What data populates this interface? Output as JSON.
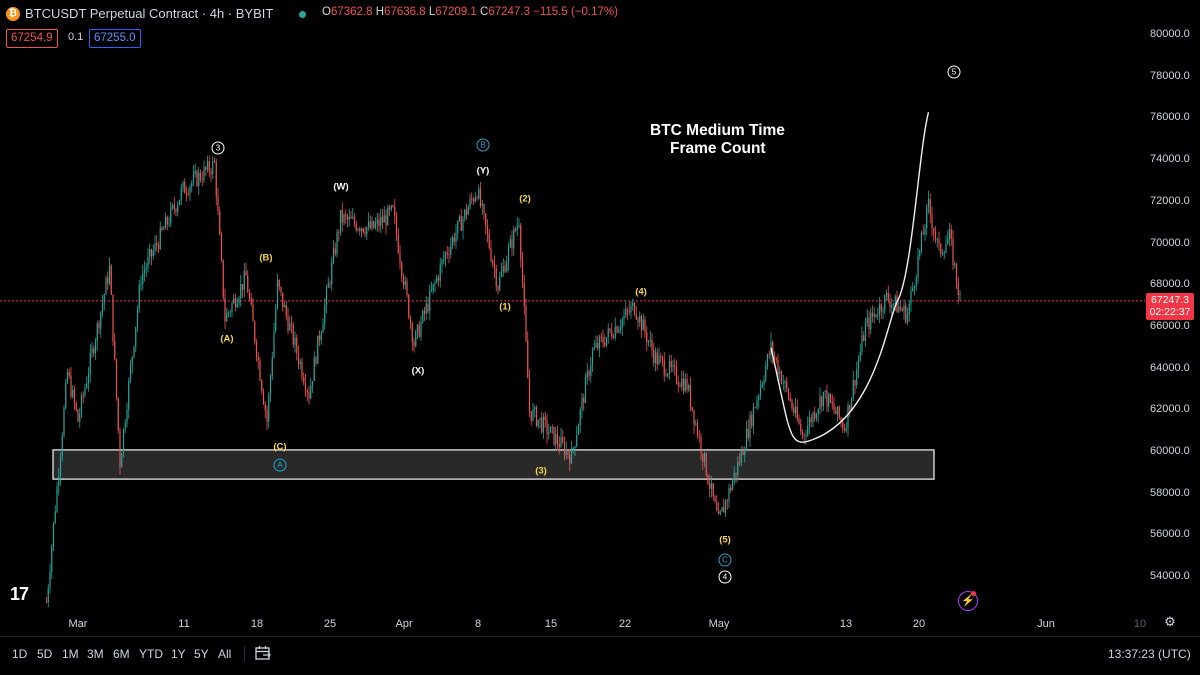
{
  "header": {
    "symbol_icon": "bitcoin-icon",
    "title": "BTCUSDT Perpetual Contract · 4h · BYBIT",
    "ohlc": {
      "o_label": "O",
      "o": "67362.8",
      "h_label": "H",
      "h": "67636.8",
      "l_label": "L",
      "l": "67209.1",
      "c_label": "C",
      "c": "67247.3",
      "change": "−115.5 (−0.17%)"
    },
    "bid": "67254.9",
    "spread": "0.1",
    "ask": "67255.0"
  },
  "colors": {
    "up": "#26a69a",
    "down": "#ef5350",
    "price_line": "#f23645",
    "wave_yellow": "#f5d742",
    "wave_cyan": "#22a6c8"
  },
  "price_axis": {
    "ticks": [
      "80000.0",
      "78000.0",
      "76000.0",
      "74000.0",
      "72000.0",
      "70000.0",
      "68000.0",
      "66000.0",
      "64000.0",
      "62000.0",
      "60000.0",
      "58000.0",
      "56000.0",
      "54000.0"
    ],
    "current_price": "67247.3",
    "countdown": "02:22:37"
  },
  "time_axis": {
    "ticks": [
      "Mar",
      "11",
      "18",
      "25",
      "Apr",
      "8",
      "15",
      "22",
      "May",
      "13",
      "20",
      "Jun",
      "10"
    ]
  },
  "annotation": {
    "line1": "BTC Medium Time",
    "line2": "Frame Count"
  },
  "wave_labels": [
    "(A)",
    "(B)",
    "(C)",
    "(W)",
    "(X)",
    "(Y)",
    "(1)",
    "(2)",
    "(3)",
    "(4)",
    "(5)"
  ],
  "wave_circles": [
    "3",
    "A",
    "B",
    "C",
    "4",
    "5"
  ],
  "bottom_bar": {
    "ranges": [
      "1D",
      "5D",
      "1M",
      "3M",
      "6M",
      "YTD",
      "1Y",
      "5Y",
      "All"
    ],
    "compare_icon": "calendar-range-icon",
    "clock": "13:37:23 (UTC)"
  },
  "logo": "17",
  "chart_data": {
    "type": "candlestick",
    "title": "BTCUSDT Perpetual Contract · 4h · BYBIT",
    "ylim": [
      52500,
      81000
    ],
    "current_price": 67247.3,
    "support_zone": [
      58700,
      60100
    ],
    "swing_path": [
      [
        "Feb 26",
        52800
      ],
      [
        "Feb 28",
        63800
      ],
      [
        "Mar 1",
        61500
      ],
      [
        "Mar 4",
        68800
      ],
      [
        "Mar 5",
        59500
      ],
      [
        "Mar 7",
        68400
      ],
      [
        "Mar 11",
        72600
      ],
      [
        "Mar 14",
        73800
      ],
      [
        "Mar 15",
        66400
      ],
      [
        "Mar 17",
        68400
      ],
      [
        "Mar 19",
        61500
      ],
      [
        "Mar 20",
        68000
      ],
      [
        "Mar 23",
        62800
      ],
      [
        "Mar 26",
        71200
      ],
      [
        "Mar 29",
        70700
      ],
      [
        "Mar 31",
        71500
      ],
      [
        "Apr 2",
        65200
      ],
      [
        "Apr 5",
        69500
      ],
      [
        "Apr 8",
        72600
      ],
      [
        "Apr 10",
        68000
      ],
      [
        "Apr 12",
        71200
      ],
      [
        "Apr 13",
        62000
      ],
      [
        "Apr 17",
        59800
      ],
      [
        "Apr 19",
        64800
      ],
      [
        "Apr 23",
        67000
      ],
      [
        "Apr 25",
        64500
      ],
      [
        "Apr 28",
        63200
      ],
      [
        "May 1",
        56600
      ],
      [
        "May 3",
        59600
      ],
      [
        "May 6",
        65000
      ],
      [
        "May 9",
        60800
      ],
      [
        "May 11",
        62800
      ],
      [
        "May 13",
        61200
      ],
      [
        "May 15",
        66000
      ],
      [
        "May 17",
        67400
      ],
      [
        "May 19",
        66600
      ],
      [
        "May 21",
        71800
      ],
      [
        "May 22",
        69600
      ],
      [
        "May 23",
        70300
      ],
      [
        "May 24",
        67300
      ]
    ],
    "projection_curve": [
      [
        "May 6",
        65000
      ],
      [
        "May 10",
        60600
      ],
      [
        "May 14",
        62200
      ],
      [
        "May 18",
        67200
      ],
      [
        "May 21",
        76300
      ]
    ]
  }
}
